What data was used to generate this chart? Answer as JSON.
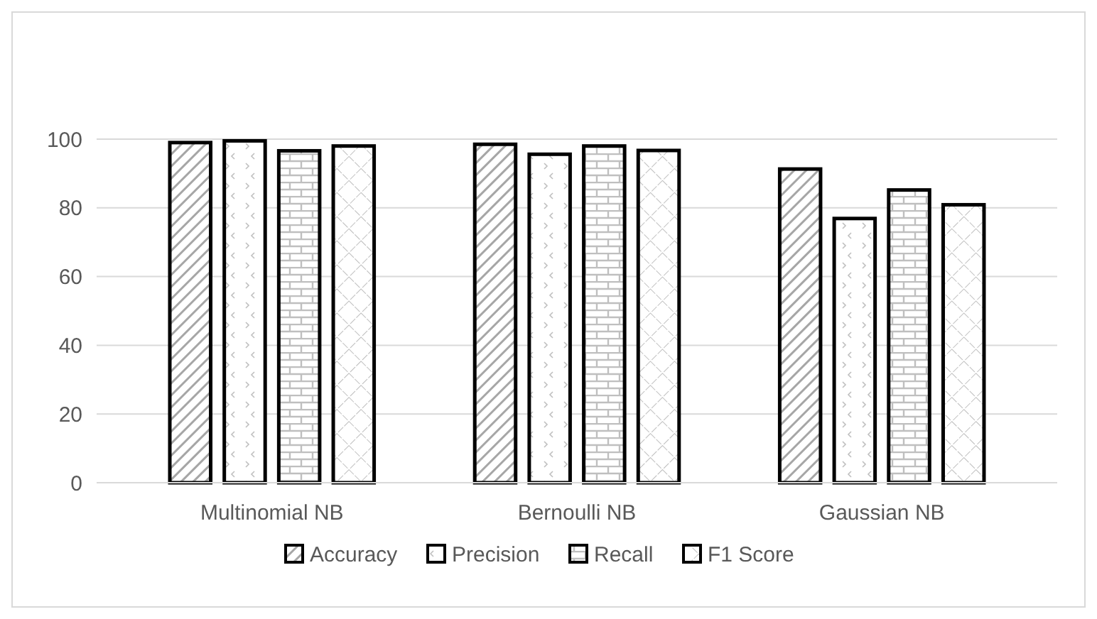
{
  "chart_data": {
    "type": "bar",
    "categories": [
      "Multinomial NB",
      "Bernoulli NB",
      "Gaussian NB"
    ],
    "series": [
      {
        "name": "Accuracy",
        "color": "#000000",
        "values": [
          99,
          98.5,
          91.3
        ]
      },
      {
        "name": "Precision",
        "color": "#000000",
        "values": [
          99.5,
          95.6,
          76.9
        ]
      },
      {
        "name": "Recall",
        "color": "#000000",
        "values": [
          96.6,
          98,
          85.2
        ]
      },
      {
        "name": "F1 Score",
        "color": "#000000",
        "values": [
          98,
          96.7,
          80.9
        ]
      }
    ],
    "ylim": [
      0,
      100
    ],
    "yticks": [
      0,
      20,
      40,
      60,
      80,
      100
    ],
    "grid": "y",
    "legend": "bottom"
  }
}
